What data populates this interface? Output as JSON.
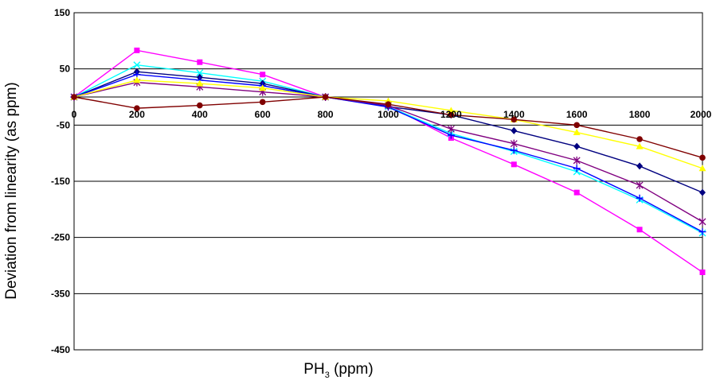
{
  "chart_data": {
    "type": "line",
    "title": "",
    "xlabel": {
      "base": "PH",
      "sub": "3",
      "rest": " (ppm)"
    },
    "ylabel": "Deviation from linearity (as ppm)",
    "x": [
      0,
      200,
      400,
      600,
      800,
      1000,
      1200,
      1400,
      1600,
      1800,
      2000
    ],
    "x_tick_labels": [
      "0",
      "200",
      "400",
      "600",
      "800",
      "1000",
      "1200",
      "1400",
      "1600",
      "1800",
      "2000"
    ],
    "y_tick_labels": [
      "150",
      "50",
      "-50",
      "-150",
      "-250",
      "-350",
      "-450"
    ],
    "y_ticks": [
      150,
      50,
      -50,
      -150,
      -250,
      -350,
      -450
    ],
    "xlim": [
      0,
      2000
    ],
    "ylim": [
      -450,
      150
    ],
    "grid": "horizontal",
    "legend": "none",
    "series": [
      {
        "color": "#ff00ff",
        "marker": "square",
        "values": [
          0,
          83,
          62,
          40,
          0,
          -15,
          -73,
          -120,
          -170,
          -236,
          -312
        ]
      },
      {
        "color": "#00ffff",
        "marker": "x",
        "values": [
          0,
          57,
          43,
          28,
          0,
          -17,
          -65,
          -97,
          -133,
          -183,
          -242
        ]
      },
      {
        "color": "#000080",
        "marker": "diamond",
        "values": [
          0,
          45,
          35,
          24,
          0,
          -17,
          -32,
          -60,
          -88,
          -123,
          -170
        ]
      },
      {
        "color": "#0000ff",
        "marker": "plus",
        "values": [
          0,
          40,
          30,
          20,
          0,
          -18,
          -68,
          -95,
          -127,
          -180,
          -240
        ]
      },
      {
        "color": "#800080",
        "marker": "asterisk",
        "values": [
          0,
          26,
          18,
          9,
          0,
          -15,
          -57,
          -83,
          -113,
          -157,
          -222
        ]
      },
      {
        "color": "#ffff00",
        "marker": "triangle",
        "values": [
          0,
          30,
          24,
          16,
          0,
          -7,
          -24,
          -40,
          -63,
          -88,
          -127
        ]
      },
      {
        "color": "#800000",
        "marker": "circle",
        "values": [
          0,
          -20,
          -15,
          -9,
          0,
          -13,
          -32,
          -40,
          -50,
          -75,
          -108
        ]
      }
    ]
  }
}
